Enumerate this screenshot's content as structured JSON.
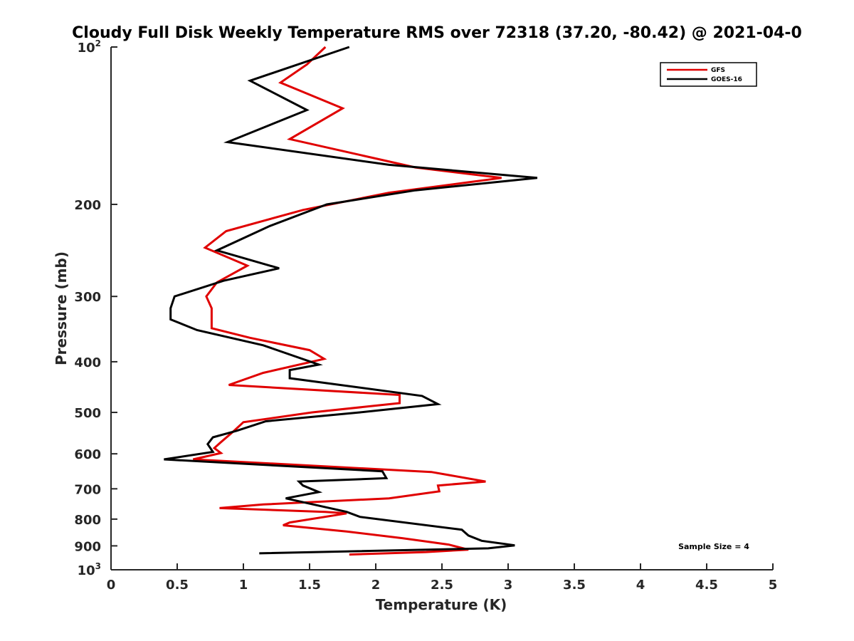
{
  "chart_data": {
    "type": "line",
    "title": "Cloudy Full Disk Weekly Temperature RMS over 72318 (37.20, -80.42) @ 2021-04-0",
    "xlabel": "Temperature (K)",
    "ylabel": "Pressure (mb)",
    "xlim": [
      0,
      5
    ],
    "ylim": [
      100,
      1000
    ],
    "y_scale": "log",
    "y_reversed": true,
    "grid": false,
    "legend_position": "top-right",
    "x_ticks": [
      "0",
      "0.5",
      "1",
      "1.5",
      "2",
      "2.5",
      "3",
      "3.5",
      "4",
      "4.5",
      "5"
    ],
    "y_ticks": [
      {
        "value": 100,
        "base": "10",
        "sup": "2"
      },
      {
        "value": 200,
        "base": "200",
        "sup": ""
      },
      {
        "value": 300,
        "base": "300",
        "sup": ""
      },
      {
        "value": 400,
        "base": "400",
        "sup": ""
      },
      {
        "value": 500,
        "base": "500",
        "sup": ""
      },
      {
        "value": 600,
        "base": "600",
        "sup": ""
      },
      {
        "value": 700,
        "base": "700",
        "sup": ""
      },
      {
        "value": 800,
        "base": "800",
        "sup": ""
      },
      {
        "value": 900,
        "base": "900",
        "sup": ""
      },
      {
        "value": 1000,
        "base": "10",
        "sup": "3"
      }
    ],
    "series": [
      {
        "name": "GFS",
        "color": "#e00000",
        "points": [
          [
            1.62,
            100
          ],
          [
            1.48,
            108
          ],
          [
            1.28,
            117
          ],
          [
            1.75,
            131
          ],
          [
            1.35,
            150
          ],
          [
            2.3,
            170
          ],
          [
            2.95,
            178
          ],
          [
            2.1,
            190
          ],
          [
            1.45,
            205
          ],
          [
            0.87,
            225
          ],
          [
            0.71,
            242
          ],
          [
            1.03,
            262
          ],
          [
            0.8,
            282
          ],
          [
            0.72,
            300
          ],
          [
            0.76,
            316
          ],
          [
            0.76,
            345
          ],
          [
            1.05,
            360
          ],
          [
            1.5,
            380
          ],
          [
            1.61,
            395
          ],
          [
            1.15,
            420
          ],
          [
            0.89,
            443
          ],
          [
            2.18,
            463
          ],
          [
            2.18,
            480
          ],
          [
            1.52,
            500
          ],
          [
            1.0,
            522
          ],
          [
            0.92,
            545
          ],
          [
            0.83,
            570
          ],
          [
            0.78,
            585
          ],
          [
            0.83,
            598
          ],
          [
            0.62,
            615
          ],
          [
            2.42,
            650
          ],
          [
            2.83,
            678
          ],
          [
            2.47,
            690
          ],
          [
            2.48,
            708
          ],
          [
            2.1,
            730
          ],
          [
            1.15,
            750
          ],
          [
            0.82,
            762
          ],
          [
            1.62,
            775
          ],
          [
            1.78,
            780
          ],
          [
            1.35,
            812
          ],
          [
            1.3,
            822
          ],
          [
            1.78,
            845
          ],
          [
            2.2,
            870
          ],
          [
            2.55,
            895
          ],
          [
            2.7,
            915
          ],
          [
            2.38,
            925
          ],
          [
            1.8,
            935
          ]
        ]
      },
      {
        "name": "GOES-16",
        "color": "#000000",
        "points": [
          [
            1.8,
            100
          ],
          [
            1.05,
            116
          ],
          [
            1.48,
            132
          ],
          [
            0.88,
            152
          ],
          [
            2.1,
            168
          ],
          [
            3.22,
            178
          ],
          [
            2.3,
            188
          ],
          [
            1.63,
            200
          ],
          [
            1.2,
            220
          ],
          [
            0.8,
            245
          ],
          [
            1.27,
            265
          ],
          [
            0.85,
            280
          ],
          [
            0.48,
            300
          ],
          [
            0.45,
            316
          ],
          [
            0.45,
            332
          ],
          [
            0.65,
            348
          ],
          [
            1.15,
            372
          ],
          [
            1.57,
            405
          ],
          [
            1.35,
            415
          ],
          [
            1.35,
            430
          ],
          [
            2.35,
            465
          ],
          [
            2.47,
            482
          ],
          [
            1.88,
            500
          ],
          [
            1.17,
            520
          ],
          [
            0.95,
            542
          ],
          [
            0.77,
            558
          ],
          [
            0.73,
            575
          ],
          [
            0.77,
            595
          ],
          [
            0.4,
            615
          ],
          [
            2.05,
            648
          ],
          [
            2.08,
            668
          ],
          [
            1.42,
            678
          ],
          [
            1.45,
            690
          ],
          [
            1.57,
            710
          ],
          [
            1.32,
            730
          ],
          [
            1.78,
            775
          ],
          [
            1.88,
            792
          ],
          [
            2.65,
            838
          ],
          [
            2.7,
            860
          ],
          [
            2.8,
            880
          ],
          [
            3.05,
            898
          ],
          [
            2.85,
            910
          ],
          [
            1.12,
            930
          ]
        ]
      }
    ],
    "annotations": [
      "Sample Size = 4"
    ]
  }
}
